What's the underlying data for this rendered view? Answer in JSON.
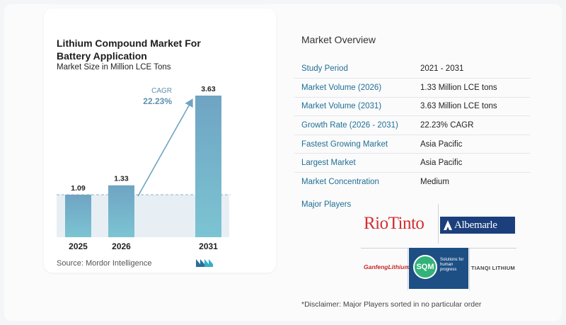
{
  "chart": {
    "title": "Lithium Compound Market For Battery Application",
    "subtitle": "Market Size in Million LCE Tons",
    "source": "Source:  Mordor Intelligence",
    "cagr_label": "CAGR",
    "cagr_value": "22.23%"
  },
  "chart_data": {
    "type": "bar",
    "title": "Lithium Compound Market For Battery Application",
    "subtitle": "Market Size in Million LCE Tons",
    "categories": [
      "2025",
      "2026",
      "2031"
    ],
    "values": [
      1.09,
      1.33,
      3.63
    ],
    "value_labels": [
      "1.09",
      "1.33",
      "3.63"
    ],
    "xlabel": "",
    "ylabel": "",
    "ylim": [
      0,
      3.63
    ],
    "grid": false,
    "annotation": "CAGR 22.23%",
    "colors": {
      "bar_top": "#6fa4c3",
      "bar_bottom": "#7cc4d3",
      "reference_band": "#e7eff5"
    }
  },
  "overview": {
    "title": "Market Overview",
    "rows": [
      {
        "key": "Study Period",
        "value": "2021 - 2031"
      },
      {
        "key": "Market Volume (2026)",
        "value": "1.33 Million LCE tons"
      },
      {
        "key": "Market Volume (2031)",
        "value": "3.63 Million LCE tons"
      },
      {
        "key": "Growth Rate (2026 - 2031)",
        "value": "22.23% CAGR"
      },
      {
        "key": "Fastest Growing Market",
        "value": "Asia Pacific"
      },
      {
        "key": "Largest Market",
        "value": "Asia Pacific"
      },
      {
        "key": "Market Concentration",
        "value": "Medium"
      }
    ]
  },
  "players": {
    "label": "Major Players",
    "logos": {
      "rio_tinto": "RioTinto",
      "albemarle": "Albemarle",
      "ganfeng": "GanfengLithium",
      "sqm": "SQM",
      "sqm_tagline": "Solutions for human progress",
      "tianqi": "TIANQI LITHIUM"
    }
  },
  "disclaimer": "*Disclaimer: Major Players sorted in no particular order",
  "colors": {
    "accent": "#1f6f94",
    "rio_red": "#d32f2f",
    "albemarle_navy": "#1b3f7c",
    "sqm_green": "#33b27a"
  }
}
